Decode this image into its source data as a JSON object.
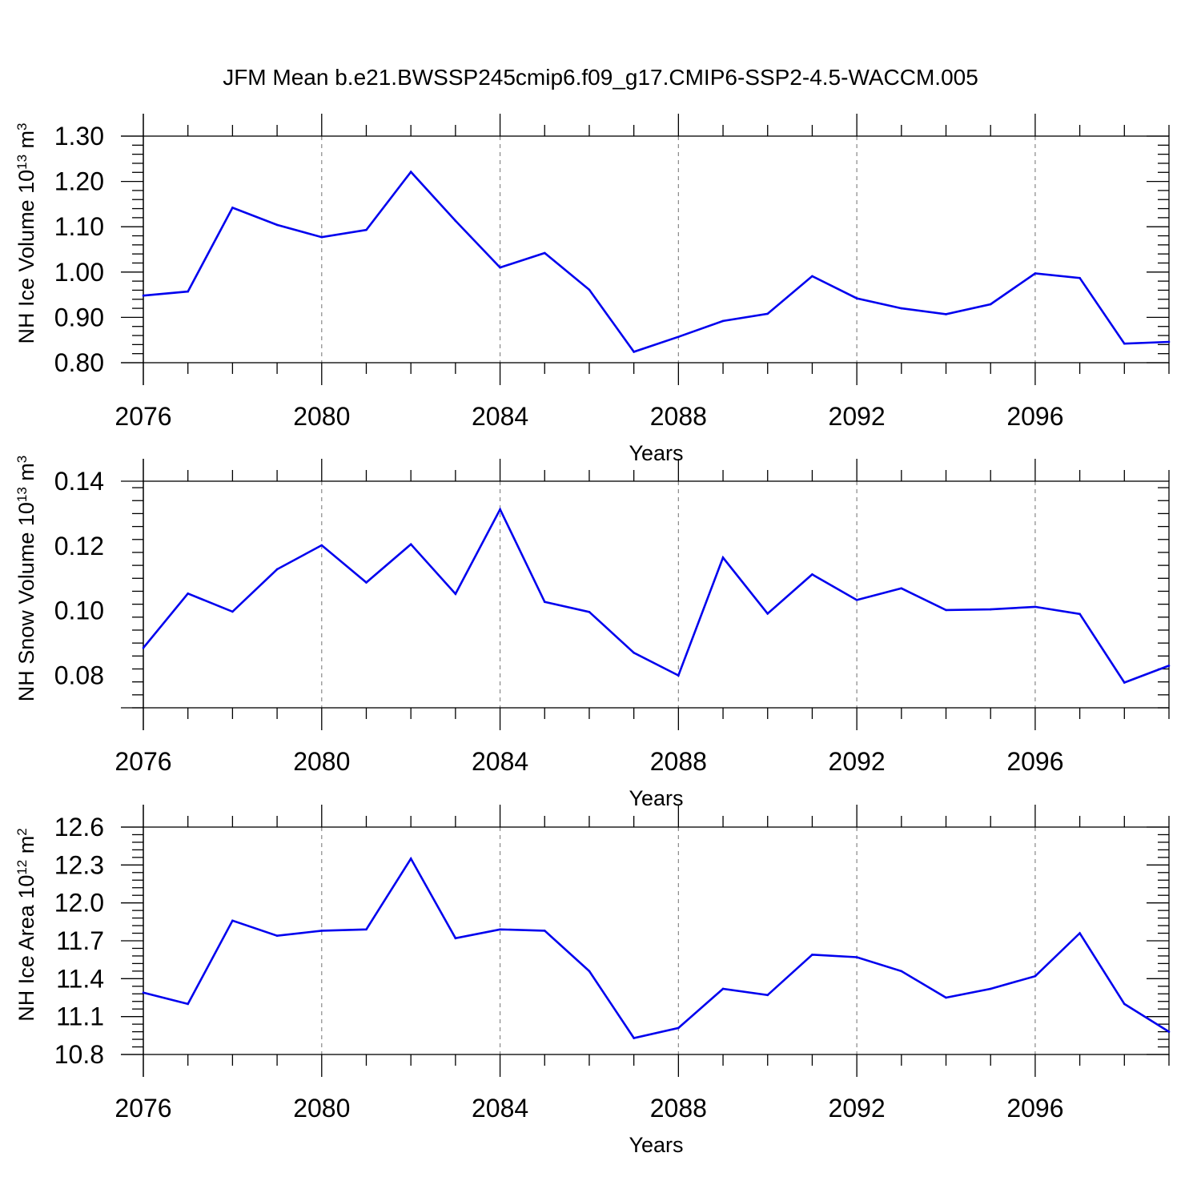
{
  "figure": {
    "title": "JFM Mean b.e21.BWSSP245cmip6.f09_g17.CMIP6-SSP2-4.5-WACCM.005",
    "line_color": "#0000ee"
  },
  "chart_data": [
    {
      "type": "line",
      "title": "",
      "xlabel": "Years",
      "ylabel": {
        "text": "NH Ice Volume 10",
        "sup": "13",
        "unit": " m",
        "unit_sup": "3"
      },
      "x": [
        2076,
        2077,
        2078,
        2079,
        2080,
        2081,
        2082,
        2083,
        2084,
        2085,
        2086,
        2087,
        2088,
        2089,
        2090,
        2091,
        2092,
        2093,
        2094,
        2095,
        2096,
        2097,
        2098,
        2099
      ],
      "series": [
        {
          "values": [
            0.948,
            0.957,
            1.142,
            1.104,
            1.077,
            1.093,
            1.221,
            1.113,
            1.01,
            1.042,
            0.961,
            0.824,
            0.857,
            0.892,
            0.908,
            0.991,
            0.942,
            0.92,
            0.907,
            0.929,
            0.997,
            0.987,
            0.842,
            0.846
          ]
        }
      ],
      "xlim": [
        2076,
        2099
      ],
      "ylim": [
        0.8,
        1.3
      ],
      "xticks": [
        "2076",
        "2080",
        "2084",
        "2088",
        "2092",
        "2096"
      ],
      "yticks": [
        "0.80",
        "0.90",
        "1.00",
        "1.10",
        "1.20",
        "1.30"
      ],
      "grid": "vertical dashed at major x ticks"
    },
    {
      "type": "line",
      "title": "",
      "xlabel": "Years",
      "ylabel": {
        "text": "NH Snow Volume 10",
        "sup": "13",
        "unit": " m",
        "unit_sup": "3"
      },
      "x": [
        2076,
        2077,
        2078,
        2079,
        2080,
        2081,
        2082,
        2083,
        2084,
        2085,
        2086,
        2087,
        2088,
        2089,
        2090,
        2091,
        2092,
        2093,
        2094,
        2095,
        2096,
        2097,
        2098,
        2099
      ],
      "series": [
        {
          "values": [
            0.0885,
            0.1053,
            0.0997,
            0.1128,
            0.1202,
            0.1087,
            0.1205,
            0.1052,
            0.1313,
            0.1027,
            0.0996,
            0.087,
            0.08,
            0.1164,
            0.0991,
            0.1112,
            0.1033,
            0.1069,
            0.1002,
            0.1004,
            0.1012,
            0.099,
            0.0778,
            0.083
          ]
        }
      ],
      "xlim": [
        2076,
        2099
      ],
      "ylim": [
        0.07,
        0.14
      ],
      "xticks": [
        "2076",
        "2080",
        "2084",
        "2088",
        "2092",
        "2096"
      ],
      "yticks": [
        "0.08",
        "0.10",
        "0.12",
        "0.14"
      ],
      "grid": "vertical dashed at major x ticks"
    },
    {
      "type": "line",
      "title": "",
      "xlabel": "Years",
      "ylabel": {
        "text": "NH Ice Area 10",
        "sup": "12",
        "unit": " m",
        "unit_sup": "2"
      },
      "x": [
        2076,
        2077,
        2078,
        2079,
        2080,
        2081,
        2082,
        2083,
        2084,
        2085,
        2086,
        2087,
        2088,
        2089,
        2090,
        2091,
        2092,
        2093,
        2094,
        2095,
        2096,
        2097,
        2098,
        2099
      ],
      "series": [
        {
          "values": [
            11.29,
            11.2,
            11.86,
            11.74,
            11.78,
            11.79,
            12.35,
            11.72,
            11.79,
            11.78,
            11.46,
            10.93,
            11.01,
            11.32,
            11.27,
            11.59,
            11.57,
            11.46,
            11.25,
            11.32,
            11.42,
            11.76,
            11.2,
            10.98
          ]
        }
      ],
      "xlim": [
        2076,
        2099
      ],
      "ylim": [
        10.8,
        12.6
      ],
      "xticks": [
        "2076",
        "2080",
        "2084",
        "2088",
        "2092",
        "2096"
      ],
      "yticks": [
        "10.8",
        "11.1",
        "11.4",
        "11.7",
        "12.0",
        "12.3",
        "12.6"
      ],
      "grid": "vertical dashed at major x ticks"
    }
  ]
}
